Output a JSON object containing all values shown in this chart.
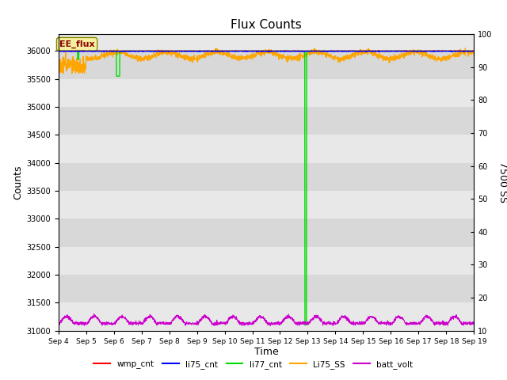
{
  "title": "Flux Counts",
  "xlabel": "Time",
  "ylabel_left": "Counts",
  "ylabel_right": "7500 SS",
  "ylim_left": [
    31000,
    36300
  ],
  "ylim_right": [
    10,
    100
  ],
  "x_tick_labels": [
    "Sep 4",
    "Sep 5",
    "Sep 6",
    "Sep 7",
    "Sep 8",
    "Sep 9",
    "Sep 10",
    "Sep 11",
    "Sep 12",
    "Sep 13",
    "Sep 14",
    "Sep 15",
    "Sep 16",
    "Sep 17",
    "Sep 18",
    "Sep 19"
  ],
  "annotation_text": "EE_flux",
  "colors": {
    "wmp_cnt": "#ff0000",
    "li75_cnt": "#0000ff",
    "li77_cnt": "#00dd00",
    "Li75_SS": "#ffa500",
    "batt_volt": "#cc00cc"
  },
  "band_colors": [
    "#e8e8e8",
    "#d8d8d8"
  ],
  "fig_background": "#ffffff",
  "title_fontsize": 11,
  "yticks_left": [
    31000,
    31500,
    32000,
    32500,
    33000,
    33500,
    34000,
    34500,
    35000,
    35500,
    36000
  ],
  "yticks_right": [
    10,
    20,
    30,
    40,
    50,
    60,
    70,
    80,
    90,
    100
  ]
}
